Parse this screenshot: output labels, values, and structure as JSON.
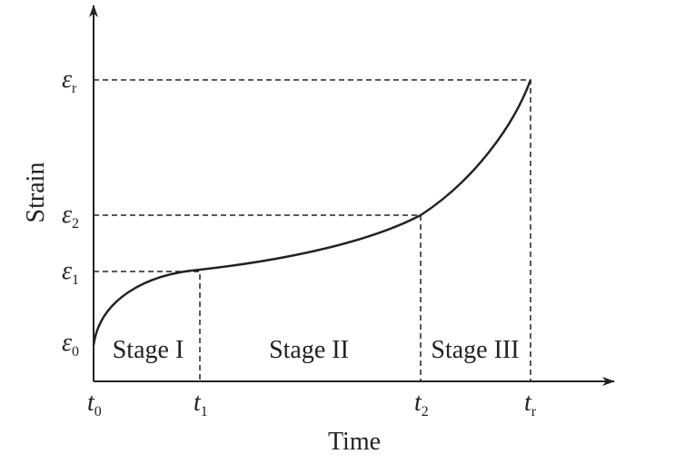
{
  "axes": {
    "x_label": "Time",
    "y_label": "Strain"
  },
  "y_ticks": [
    {
      "symbol": "ε",
      "sub": "0"
    },
    {
      "symbol": "ε",
      "sub": "1"
    },
    {
      "symbol": "ε",
      "sub": "2"
    },
    {
      "symbol": "ε",
      "sub": "r"
    }
  ],
  "x_ticks": [
    {
      "symbol": "t",
      "sub": "0"
    },
    {
      "symbol": "t",
      "sub": "1"
    },
    {
      "symbol": "t",
      "sub": "2"
    },
    {
      "symbol": "t",
      "sub": "r"
    }
  ],
  "stages": [
    "Stage I",
    "Stage II",
    "Stage III"
  ]
}
